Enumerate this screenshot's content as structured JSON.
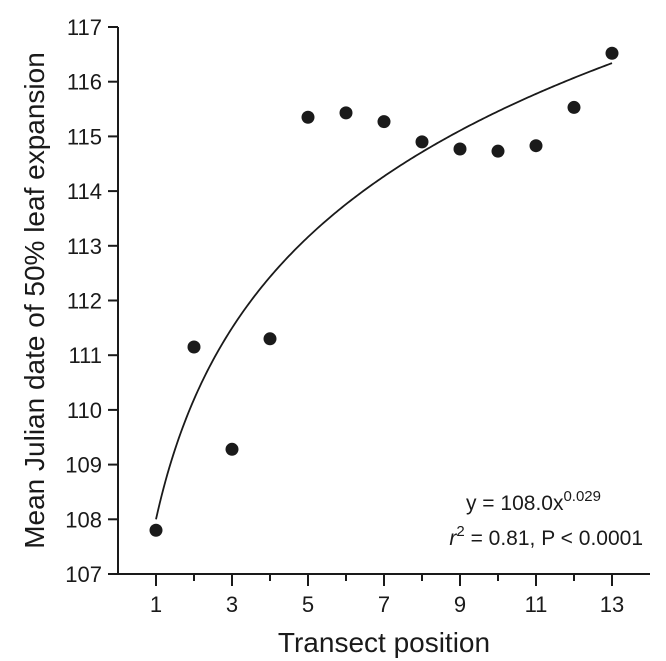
{
  "chart_data": {
    "type": "scatter",
    "xlabel": "Transect position",
    "ylabel": "Mean Julian date of 50% leaf expansion",
    "xlim": [
      0,
      14
    ],
    "ylim": [
      107,
      117
    ],
    "x_ticks": [
      1,
      3,
      5,
      7,
      9,
      11,
      13
    ],
    "x_minor_ticks": [
      2,
      4,
      6,
      8,
      10,
      12
    ],
    "y_ticks": [
      107,
      108,
      109,
      110,
      111,
      112,
      113,
      114,
      115,
      116,
      117
    ],
    "grid": false,
    "points": [
      {
        "x": 1,
        "y": 107.8
      },
      {
        "x": 2,
        "y": 111.15
      },
      {
        "x": 3,
        "y": 109.28
      },
      {
        "x": 4,
        "y": 111.3
      },
      {
        "x": 5,
        "y": 115.35
      },
      {
        "x": 6,
        "y": 115.43
      },
      {
        "x": 7,
        "y": 115.27
      },
      {
        "x": 8,
        "y": 114.9
      },
      {
        "x": 9,
        "y": 114.77
      },
      {
        "x": 10,
        "y": 114.73
      },
      {
        "x": 11,
        "y": 114.83
      },
      {
        "x": 12,
        "y": 115.53
      },
      {
        "x": 13,
        "y": 116.52
      }
    ],
    "fit": {
      "type": "power",
      "a": 108.0,
      "b": 0.029,
      "equation_prefix": "y = 108.0x",
      "equation_exponent": "0.029",
      "stats_r": "r",
      "stats_exponent": "2",
      "stats_rest": " = 0.81, P < 0.0001"
    }
  }
}
